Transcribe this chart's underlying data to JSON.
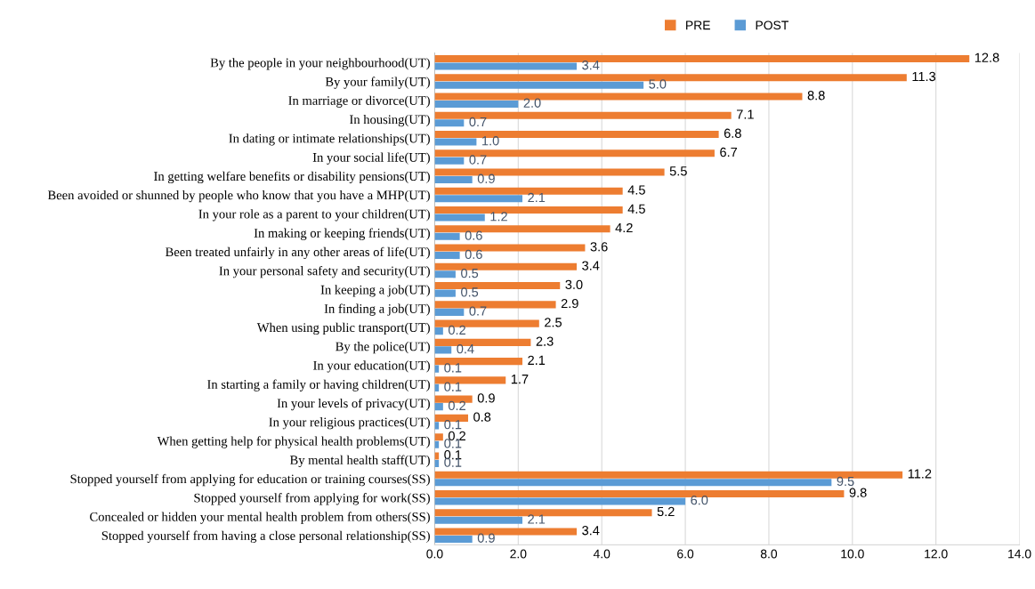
{
  "chart_data": {
    "type": "bar",
    "orientation": "horizontal",
    "categories": [
      "By the people in your neighbourhood(UT)",
      "By your family(UT)",
      "In marriage or divorce(UT)",
      "In housing(UT)",
      "In dating or intimate relationships(UT)",
      "In your social life(UT)",
      "In getting welfare benefits or disability pensions(UT)",
      "Been avoided or shunned by people who know that you have a MHP(UT)",
      "In your role as a parent to your children(UT)",
      "In making or keeping friends(UT)",
      "Been treated unfairly in any other areas of life(UT)",
      "In your personal safety and security(UT)",
      "In keeping a job(UT)",
      "In finding a job(UT)",
      "When using public transport(UT)",
      "By the police(UT)",
      "In your education(UT)",
      "In starting a family or having children(UT)",
      "In your levels of privacy(UT)",
      "In your religious practices(UT)",
      "When getting help for physical health problems(UT)",
      "By mental health staff(UT)",
      "Stopped yourself from applying for education or training courses(SS)",
      "Stopped yourself from applying for work(SS)",
      "Concealed or hidden your mental health problem from others(SS)",
      "Stopped yourself from having a close personal relationship(SS)"
    ],
    "series": [
      {
        "name": "PRE",
        "color": "#ed7d31",
        "values": [
          12.8,
          11.3,
          8.8,
          7.1,
          6.8,
          6.7,
          5.5,
          4.5,
          4.5,
          4.2,
          3.6,
          3.4,
          3.0,
          2.9,
          2.5,
          2.3,
          2.1,
          1.7,
          0.9,
          0.8,
          0.2,
          0.1,
          11.2,
          9.8,
          5.2,
          3.4
        ],
        "value_labels": [
          "12.8",
          "11.3",
          "8.8",
          "7.1",
          "6.8",
          "6.7",
          "5.5",
          "4.5",
          "4.5",
          "4.2",
          "3.6",
          "3.4",
          "3.0",
          "2.9",
          "2.5",
          "2.3",
          "2.1",
          "1.7",
          "0.9",
          "0.8",
          "0.2",
          "0.1",
          "11.2",
          "9.8",
          "5.2",
          "3.4"
        ]
      },
      {
        "name": "POST",
        "color": "#5b9bd5",
        "values": [
          3.4,
          5.0,
          2.0,
          0.7,
          1.0,
          0.7,
          0.9,
          2.1,
          1.2,
          0.6,
          0.6,
          0.5,
          0.5,
          0.7,
          0.2,
          0.4,
          0.1,
          0.1,
          0.2,
          0.1,
          0.1,
          0.1,
          9.5,
          6.0,
          2.1,
          0.9
        ],
        "value_labels": [
          "3.4",
          "5.0",
          "2.0",
          "0.7",
          "1.0",
          "0.7",
          "0.9",
          "2.1",
          "1.2",
          "0.6",
          "0.6",
          "0.5",
          "0.5",
          "0.7",
          "0.2",
          "0.4",
          "0.1",
          "0.1",
          "0.2",
          "0.1",
          "0.1",
          "0.1",
          "9.5",
          "6.0",
          "2.1",
          "0.9"
        ]
      }
    ],
    "xlim": [
      0,
      14
    ],
    "xticks": [
      {
        "value": 0,
        "label": "0.0"
      },
      {
        "value": 2,
        "label": "2.0"
      },
      {
        "value": 4,
        "label": "4.0"
      },
      {
        "value": 6,
        "label": "6.0"
      },
      {
        "value": 8,
        "label": "8.0"
      },
      {
        "value": 10,
        "label": "10.0"
      },
      {
        "value": 12,
        "label": "12.0"
      },
      {
        "value": 14,
        "label": "14.0"
      }
    ],
    "grid": "x",
    "legend": "top"
  }
}
